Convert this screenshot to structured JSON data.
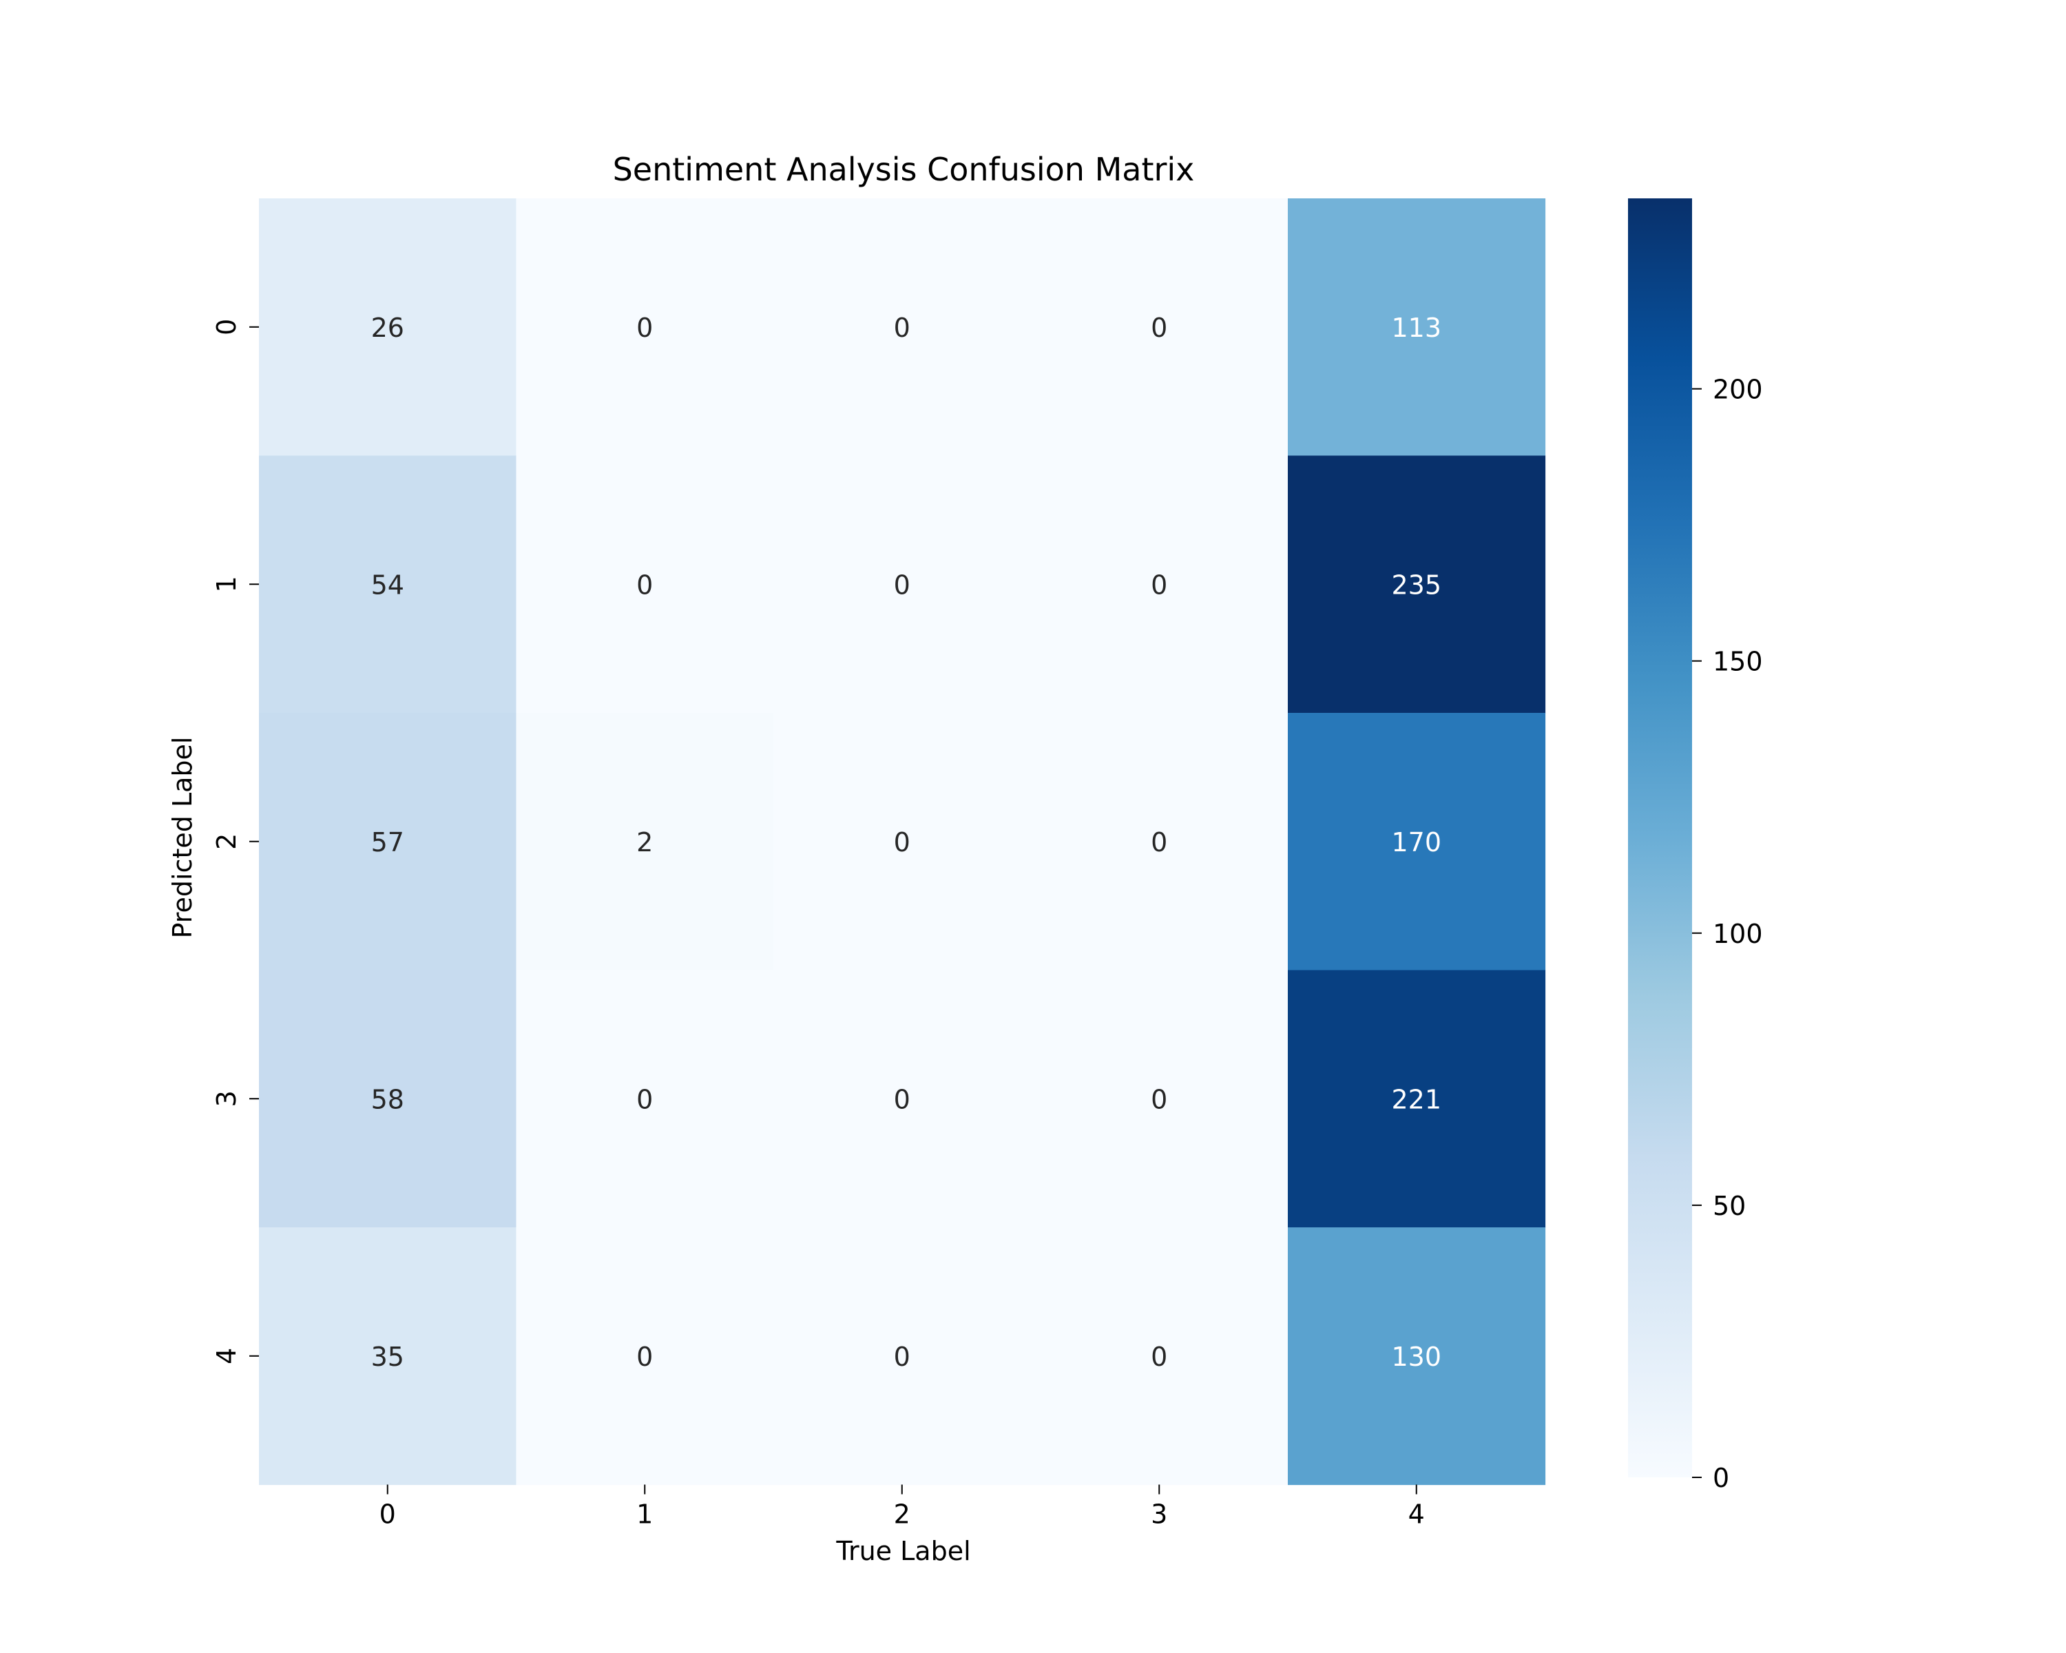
{
  "chart_data": {
    "type": "heatmap",
    "title": "Sentiment Analysis Confusion Matrix",
    "xlabel": "True Label",
    "ylabel": "Predicted Label",
    "x_categories": [
      "0",
      "1",
      "2",
      "3",
      "4"
    ],
    "y_categories": [
      "0",
      "1",
      "2",
      "3",
      "4"
    ],
    "values": [
      [
        26,
        0,
        0,
        0,
        113
      ],
      [
        54,
        0,
        0,
        0,
        235
      ],
      [
        57,
        2,
        0,
        0,
        170
      ],
      [
        58,
        0,
        0,
        0,
        221
      ],
      [
        35,
        0,
        0,
        0,
        130
      ]
    ],
    "colormap": "Blues",
    "colorbar": {
      "range": [
        0,
        235
      ],
      "ticks": [
        0,
        50,
        100,
        150,
        200
      ],
      "tick_labels": [
        "0",
        "50",
        "100",
        "150",
        "200"
      ]
    }
  }
}
